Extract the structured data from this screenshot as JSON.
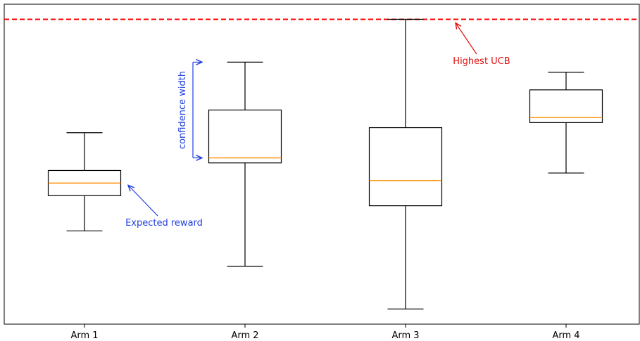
{
  "chart_data": {
    "type": "boxplot",
    "categories": [
      "Arm 1",
      "Arm 2",
      "Arm 3",
      "Arm 4"
    ],
    "boxes": [
      {
        "whisker_low": 0.6,
        "q1": 0.74,
        "median": 0.79,
        "q3": 0.84,
        "whisker_high": 0.99
      },
      {
        "whisker_low": 0.46,
        "q1": 0.87,
        "median": 0.89,
        "q3": 1.08,
        "whisker_high": 1.27
      },
      {
        "whisker_low": 0.29,
        "q1": 0.7,
        "median": 0.8,
        "q3": 1.01,
        "whisker_high": 1.44
      },
      {
        "whisker_low": 0.83,
        "q1": 1.03,
        "median": 1.05,
        "q3": 1.16,
        "whisker_high": 1.23
      }
    ],
    "ylim": [
      0.23,
      1.5
    ],
    "reference_line": {
      "value": 1.44,
      "color": "#ff0000",
      "style": "dashed"
    },
    "show_y_ticks": false,
    "grid": false,
    "annotations": [
      {
        "id": "expected",
        "text": "Expected reward",
        "color": "#1f3fdf"
      },
      {
        "id": "confidence",
        "text": "confidence width",
        "color": "#1f3fdf"
      },
      {
        "id": "highest",
        "text": "Highest UCB",
        "color": "#e01010"
      }
    ],
    "colors": {
      "box": "#000000",
      "median": "#ff8c00",
      "annotation_blue": "#1f3fdf",
      "annotation_red": "#e01010"
    }
  }
}
